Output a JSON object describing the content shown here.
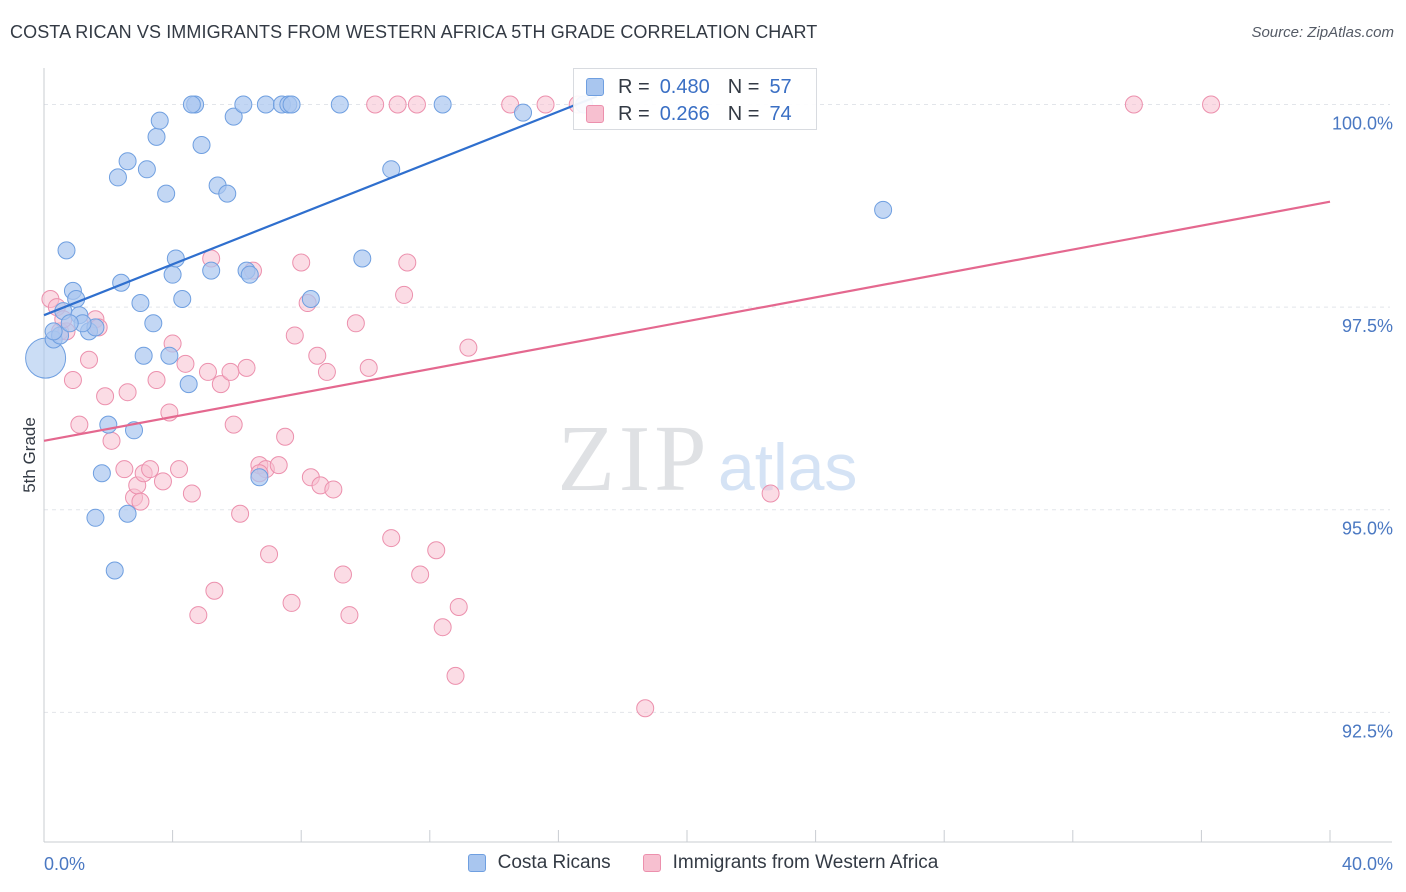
{
  "header": {
    "title": "COSTA RICAN VS IMMIGRANTS FROM WESTERN AFRICA 5TH GRADE CORRELATION CHART",
    "source": "Source: ZipAtlas.com"
  },
  "watermark": {
    "zip": "ZIP",
    "atlas": "atlas"
  },
  "colors": {
    "blue_fill": "#a9c6ef",
    "blue_stroke": "#6f9fe0",
    "blue_line": "#2f6fce",
    "pink_fill": "#f7c0d0",
    "pink_stroke": "#ec90ad",
    "pink_line": "#e4688f",
    "tick_label": "#4a78c2",
    "grid": "#e2e5ea"
  },
  "legend": {
    "series": [
      {
        "r_label": "R =",
        "r_value": "0.480",
        "n_label": "N =",
        "n_value": "57"
      },
      {
        "r_label": "R =",
        "r_value": "0.266",
        "n_label": "N =",
        "n_value": "74"
      }
    ],
    "bottom": [
      "Costa Ricans",
      "Immigrants from Western Africa"
    ]
  },
  "chart_data": {
    "type": "scatter",
    "title": "COSTA RICAN VS IMMIGRANTS FROM WESTERN AFRICA 5TH GRADE CORRELATION CHART",
    "xlabel": "",
    "ylabel": "5th Grade",
    "xlim": [
      0,
      40
    ],
    "ylim": [
      90.9,
      100.45
    ],
    "x_tick_labels": [
      {
        "x": 0,
        "label": "0.0%"
      },
      {
        "x": 40,
        "label": "40.0%"
      }
    ],
    "y_tick_labels": [
      {
        "y": 100.0,
        "label": "100.0%"
      },
      {
        "y": 97.5,
        "label": "97.5%"
      },
      {
        "y": 95.0,
        "label": "95.0%"
      },
      {
        "y": 92.5,
        "label": "92.5%"
      }
    ],
    "series": [
      {
        "name": "Costa Ricans",
        "R": 0.48,
        "N": 57,
        "trendline": {
          "x": [
            0.0,
            17.2
          ],
          "y": [
            97.4,
            100.1
          ]
        },
        "points": [
          [
            0.05,
            96.87
          ],
          [
            0.3,
            97.1
          ],
          [
            0.5,
            97.15
          ],
          [
            0.6,
            97.45
          ],
          [
            0.7,
            98.2
          ],
          [
            0.9,
            97.7
          ],
          [
            1.0,
            97.6
          ],
          [
            1.1,
            97.4
          ],
          [
            1.4,
            97.2
          ],
          [
            1.6,
            97.25
          ],
          [
            1.8,
            95.45
          ],
          [
            1.6,
            94.9
          ],
          [
            2.0,
            96.05
          ],
          [
            2.2,
            94.25
          ],
          [
            2.3,
            99.1
          ],
          [
            2.4,
            97.8
          ],
          [
            2.6,
            99.3
          ],
          [
            2.6,
            94.95
          ],
          [
            2.8,
            95.98
          ],
          [
            3.0,
            97.55
          ],
          [
            3.1,
            96.9
          ],
          [
            3.2,
            99.2
          ],
          [
            3.4,
            97.3
          ],
          [
            3.5,
            99.6
          ],
          [
            3.6,
            99.8
          ],
          [
            3.8,
            98.9
          ],
          [
            3.9,
            96.9
          ],
          [
            4.0,
            97.9
          ],
          [
            4.1,
            98.1
          ],
          [
            4.3,
            97.6
          ],
          [
            4.5,
            96.55
          ],
          [
            4.9,
            99.5
          ],
          [
            4.7,
            100.0
          ],
          [
            5.2,
            97.95
          ],
          [
            5.4,
            99.0
          ],
          [
            5.7,
            98.9
          ],
          [
            5.9,
            99.85
          ],
          [
            6.2,
            100.0
          ],
          [
            6.3,
            97.95
          ],
          [
            6.4,
            97.9
          ],
          [
            6.7,
            95.4
          ],
          [
            6.9,
            100.0
          ],
          [
            7.4,
            100.0
          ],
          [
            7.6,
            100.0
          ],
          [
            7.7,
            100.0
          ],
          [
            8.3,
            97.6
          ],
          [
            9.2,
            100.0
          ],
          [
            9.9,
            98.1
          ],
          [
            10.8,
            99.2
          ],
          [
            12.4,
            100.0
          ],
          [
            14.9,
            99.9
          ],
          [
            16.8,
            100.0
          ],
          [
            26.1,
            98.7
          ],
          [
            0.3,
            97.2
          ],
          [
            1.2,
            97.3
          ],
          [
            0.8,
            97.3
          ],
          [
            4.6,
            100.0
          ]
        ]
      },
      {
        "name": "Immigrants from Western Africa",
        "R": 0.266,
        "N": 74,
        "trendline": {
          "x": [
            0.0,
            40.0
          ],
          "y": [
            95.85,
            98.8
          ]
        },
        "points": [
          [
            0.2,
            97.6
          ],
          [
            0.4,
            97.5
          ],
          [
            0.5,
            97.2
          ],
          [
            0.7,
            97.2
          ],
          [
            0.9,
            96.6
          ],
          [
            1.1,
            96.05
          ],
          [
            1.4,
            96.85
          ],
          [
            1.6,
            97.35
          ],
          [
            1.7,
            97.25
          ],
          [
            1.9,
            96.4
          ],
          [
            2.1,
            95.85
          ],
          [
            2.5,
            95.5
          ],
          [
            2.6,
            96.45
          ],
          [
            2.8,
            95.15
          ],
          [
            2.9,
            95.3
          ],
          [
            3.1,
            95.45
          ],
          [
            3.3,
            95.5
          ],
          [
            3.5,
            96.6
          ],
          [
            3.7,
            95.35
          ],
          [
            3.9,
            96.2
          ],
          [
            4.0,
            97.05
          ],
          [
            4.2,
            95.5
          ],
          [
            4.4,
            96.8
          ],
          [
            4.6,
            95.2
          ],
          [
            4.8,
            93.7
          ],
          [
            5.1,
            96.7
          ],
          [
            5.2,
            98.1
          ],
          [
            5.3,
            94.0
          ],
          [
            5.5,
            96.55
          ],
          [
            5.8,
            96.7
          ],
          [
            5.9,
            96.05
          ],
          [
            6.1,
            94.95
          ],
          [
            6.3,
            96.75
          ],
          [
            6.5,
            97.95
          ],
          [
            6.7,
            95.55
          ],
          [
            6.9,
            95.5
          ],
          [
            7.0,
            94.45
          ],
          [
            7.3,
            95.55
          ],
          [
            7.5,
            95.9
          ],
          [
            7.7,
            93.85
          ],
          [
            7.8,
            97.15
          ],
          [
            8.0,
            98.05
          ],
          [
            8.2,
            97.55
          ],
          [
            8.3,
            95.4
          ],
          [
            8.5,
            96.9
          ],
          [
            8.6,
            95.3
          ],
          [
            8.8,
            96.7
          ],
          [
            9.0,
            95.25
          ],
          [
            9.3,
            94.2
          ],
          [
            9.5,
            93.7
          ],
          [
            9.7,
            97.3
          ],
          [
            10.1,
            96.75
          ],
          [
            10.3,
            100.0
          ],
          [
            10.8,
            94.65
          ],
          [
            11.0,
            100.0
          ],
          [
            11.2,
            97.65
          ],
          [
            11.3,
            98.05
          ],
          [
            11.6,
            100.0
          ],
          [
            11.7,
            94.2
          ],
          [
            12.2,
            94.5
          ],
          [
            12.4,
            93.55
          ],
          [
            12.8,
            92.95
          ],
          [
            12.9,
            93.8
          ],
          [
            13.2,
            97.0
          ],
          [
            14.5,
            100.0
          ],
          [
            15.6,
            100.0
          ],
          [
            16.6,
            100.0
          ],
          [
            18.7,
            92.55
          ],
          [
            22.6,
            95.2
          ],
          [
            33.9,
            100.0
          ],
          [
            36.3,
            100.0
          ],
          [
            0.6,
            97.35
          ],
          [
            3.0,
            95.1
          ],
          [
            6.7,
            95.45
          ]
        ]
      }
    ]
  }
}
